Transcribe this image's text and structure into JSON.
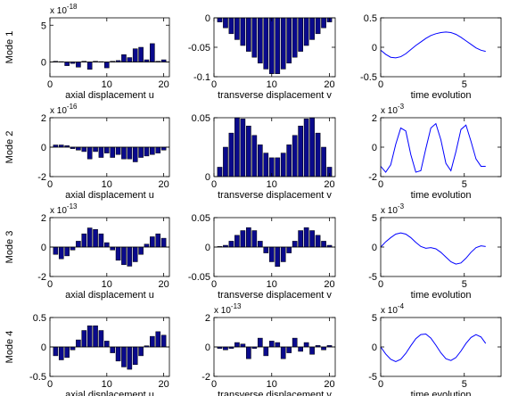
{
  "colors": {
    "bar_fill": "#0a0a8c",
    "bar_edge": "#000000",
    "line": "#0000ff",
    "axes": "#000000"
  },
  "chart_data": [
    {
      "type": "bar",
      "title": "",
      "row_label": "Mode 1",
      "xlabel": "axial displacement u",
      "ylabel": "",
      "xlim": [
        0,
        21
      ],
      "ylim": [
        -2,
        6
      ],
      "multiplier": "x 10",
      "exponent": "-18",
      "xticks": [
        0,
        10,
        20
      ],
      "xtick_labels": [
        "0",
        "10",
        "20"
      ],
      "yticks": [
        0,
        5
      ],
      "ytick_labels": [
        "0",
        "5"
      ],
      "x": [
        1,
        2,
        3,
        4,
        5,
        6,
        7,
        8,
        9,
        10,
        11,
        12,
        13,
        14,
        15,
        16,
        17,
        18,
        19,
        20
      ],
      "values": [
        0.1,
        0.05,
        -0.5,
        -0.2,
        -0.7,
        0.1,
        -1.0,
        0.1,
        0.05,
        -0.8,
        0.1,
        0.2,
        1.0,
        0.6,
        1.8,
        2.0,
        0.3,
        2.5,
        0.1,
        0.3
      ]
    },
    {
      "type": "bar",
      "title": "",
      "row_label": "",
      "xlabel": "transverse displacement v",
      "ylabel": "",
      "xlim": [
        0,
        21
      ],
      "ylim": [
        -0.1,
        0
      ],
      "multiplier": "",
      "exponent": "",
      "xticks": [
        0,
        10,
        20
      ],
      "xtick_labels": [
        "0",
        "10",
        "20"
      ],
      "yticks": [
        -0.1,
        -0.05,
        0
      ],
      "ytick_labels": [
        "-0.1",
        "-0.05",
        "0"
      ],
      "x": [
        1,
        2,
        3,
        4,
        5,
        6,
        7,
        8,
        9,
        10,
        11,
        12,
        13,
        14,
        15,
        16,
        17,
        18,
        19,
        20
      ],
      "values": [
        -0.007,
        -0.017,
        -0.027,
        -0.037,
        -0.047,
        -0.057,
        -0.067,
        -0.077,
        -0.087,
        -0.095,
        -0.095,
        -0.087,
        -0.077,
        -0.067,
        -0.057,
        -0.047,
        -0.037,
        -0.027,
        -0.017,
        -0.007
      ]
    },
    {
      "type": "line",
      "title": "",
      "row_label": "",
      "xlabel": "time evolution",
      "ylabel": "",
      "xlim": [
        0,
        7.2
      ],
      "ylim": [
        -0.5,
        0.5
      ],
      "multiplier": "",
      "exponent": "",
      "xticks": [
        0,
        5
      ],
      "xtick_labels": [
        "0",
        "5"
      ],
      "yticks": [
        -0.5,
        0,
        0.5
      ],
      "ytick_labels": [
        "-0.5",
        "0",
        "0.5"
      ],
      "x": [
        0,
        0.3,
        0.6,
        0.9,
        1.2,
        1.5,
        1.8,
        2.1,
        2.4,
        2.7,
        3.0,
        3.3,
        3.6,
        3.9,
        4.2,
        4.5,
        4.8,
        5.1,
        5.4,
        5.7,
        6.0,
        6.28
      ],
      "y": [
        -0.05,
        -0.12,
        -0.17,
        -0.18,
        -0.16,
        -0.11,
        -0.04,
        0.03,
        0.09,
        0.15,
        0.2,
        0.23,
        0.25,
        0.26,
        0.25,
        0.22,
        0.17,
        0.11,
        0.05,
        -0.01,
        -0.05,
        -0.07
      ]
    },
    {
      "type": "bar",
      "title": "",
      "row_label": "Mode 2",
      "xlabel": "axial displacement u",
      "ylabel": "",
      "xlim": [
        0,
        21
      ],
      "ylim": [
        -2,
        2
      ],
      "multiplier": "x 10",
      "exponent": "-16",
      "xticks": [
        0,
        10,
        20
      ],
      "xtick_labels": [
        "0",
        "10",
        "20"
      ],
      "yticks": [
        -2,
        0,
        2
      ],
      "ytick_labels": [
        "-2",
        "0",
        "2"
      ],
      "x": [
        1,
        2,
        3,
        4,
        5,
        6,
        7,
        8,
        9,
        10,
        11,
        12,
        13,
        14,
        15,
        16,
        17,
        18,
        19,
        20
      ],
      "values": [
        0.15,
        0.15,
        0.1,
        -0.1,
        -0.2,
        -0.3,
        -0.8,
        -0.3,
        -0.7,
        -0.4,
        -0.7,
        -0.5,
        -0.8,
        -0.8,
        -1.0,
        -0.7,
        -0.6,
        -0.5,
        -0.4,
        -0.2
      ]
    },
    {
      "type": "bar",
      "title": "",
      "row_label": "",
      "xlabel": "transverse displacement v",
      "ylabel": "",
      "xlim": [
        0,
        21
      ],
      "ylim": [
        0,
        0.05
      ],
      "multiplier": "",
      "exponent": "",
      "xticks": [
        0,
        10,
        20
      ],
      "xtick_labels": [
        "0",
        "10",
        "20"
      ],
      "yticks": [
        0,
        0.05
      ],
      "ytick_labels": [
        "0",
        "0.05"
      ],
      "x": [
        1,
        2,
        3,
        4,
        5,
        6,
        7,
        8,
        9,
        10,
        11,
        12,
        13,
        14,
        15,
        16,
        17,
        18,
        19,
        20
      ],
      "values": [
        0.008,
        0.025,
        0.037,
        0.05,
        0.049,
        0.043,
        0.035,
        0.027,
        0.02,
        0.016,
        0.016,
        0.02,
        0.027,
        0.035,
        0.043,
        0.049,
        0.05,
        0.037,
        0.025,
        0.008
      ]
    },
    {
      "type": "line",
      "title": "",
      "row_label": "",
      "xlabel": "time evolution",
      "ylabel": "",
      "xlim": [
        0,
        7.2
      ],
      "ylim": [
        -2,
        2
      ],
      "multiplier": "x 10",
      "exponent": "-3",
      "xticks": [
        0,
        5
      ],
      "xtick_labels": [
        "0",
        "5"
      ],
      "yticks": [
        -2,
        0,
        2
      ],
      "ytick_labels": [
        "-2",
        "0",
        "2"
      ],
      "x": [
        0,
        0.3,
        0.6,
        0.9,
        1.2,
        1.5,
        1.8,
        2.1,
        2.4,
        2.7,
        3.0,
        3.3,
        3.6,
        3.9,
        4.2,
        4.5,
        4.8,
        5.1,
        5.4,
        5.7,
        6.0,
        6.28
      ],
      "y": [
        -1.3,
        -1.7,
        -1.2,
        0.2,
        1.3,
        1.1,
        -0.5,
        -1.7,
        -1.6,
        -0.1,
        1.3,
        1.6,
        0.5,
        -1.1,
        -1.6,
        -0.3,
        1.2,
        1.5,
        0.4,
        -0.8,
        -1.3,
        -1.3
      ]
    },
    {
      "type": "bar",
      "title": "",
      "row_label": "Mode 3",
      "xlabel": "axial displacement u",
      "ylabel": "",
      "xlim": [
        0,
        21
      ],
      "ylim": [
        -2,
        2
      ],
      "multiplier": "x 10",
      "exponent": "-13",
      "xticks": [
        0,
        10,
        20
      ],
      "xtick_labels": [
        "0",
        "10",
        "20"
      ],
      "yticks": [
        -2,
        0,
        2
      ],
      "ytick_labels": [
        "-2",
        "0",
        "2"
      ],
      "x": [
        1,
        2,
        3,
        4,
        5,
        6,
        7,
        8,
        9,
        10,
        11,
        12,
        13,
        14,
        15,
        16,
        17,
        18,
        19,
        20
      ],
      "values": [
        -0.5,
        -0.8,
        -0.6,
        -0.2,
        0.4,
        0.9,
        1.3,
        1.2,
        0.9,
        0.3,
        -0.2,
        -0.9,
        -1.2,
        -1.3,
        -1.0,
        -0.5,
        0.2,
        0.7,
        0.9,
        0.6
      ]
    },
    {
      "type": "bar",
      "title": "",
      "row_label": "",
      "xlabel": "transverse displacement v",
      "ylabel": "",
      "xlim": [
        0,
        21
      ],
      "ylim": [
        -0.05,
        0.05
      ],
      "multiplier": "",
      "exponent": "",
      "xticks": [
        0,
        10,
        20
      ],
      "xtick_labels": [
        "0",
        "10",
        "20"
      ],
      "yticks": [
        -0.05,
        0,
        0.05
      ],
      "ytick_labels": [
        "-0.05",
        "0",
        "0.05"
      ],
      "x": [
        1,
        2,
        3,
        4,
        5,
        6,
        7,
        8,
        9,
        10,
        11,
        12,
        13,
        14,
        15,
        16,
        17,
        18,
        19,
        20
      ],
      "values": [
        0.001,
        0.003,
        0.01,
        0.02,
        0.028,
        0.033,
        0.028,
        0.01,
        -0.01,
        -0.025,
        -0.033,
        -0.025,
        -0.01,
        0.01,
        0.028,
        0.033,
        0.028,
        0.02,
        0.01,
        0.003
      ]
    },
    {
      "type": "line",
      "title": "",
      "row_label": "",
      "xlabel": "time evolution",
      "ylabel": "",
      "xlim": [
        0,
        7.2
      ],
      "ylim": [
        -5,
        5
      ],
      "multiplier": "x 10",
      "exponent": "-3",
      "xticks": [
        0,
        5
      ],
      "xtick_labels": [
        "0",
        "5"
      ],
      "yticks": [
        -5,
        0,
        5
      ],
      "ytick_labels": [
        "-5",
        "0",
        "5"
      ],
      "x": [
        0,
        0.3,
        0.6,
        0.9,
        1.2,
        1.5,
        1.8,
        2.1,
        2.4,
        2.7,
        3.0,
        3.3,
        3.6,
        3.9,
        4.2,
        4.5,
        4.8,
        5.1,
        5.4,
        5.7,
        6.0,
        6.28
      ],
      "y": [
        0,
        0.9,
        1.6,
        2.2,
        2.4,
        2.2,
        1.6,
        0.8,
        0.1,
        -0.2,
        -0.1,
        -0.3,
        -0.9,
        -1.7,
        -2.5,
        -2.9,
        -2.7,
        -1.9,
        -0.9,
        -0.1,
        0.2,
        0.1
      ]
    },
    {
      "type": "bar",
      "title": "",
      "row_label": "Mode 4",
      "xlabel": "axial displacement u",
      "ylabel": "",
      "xlim": [
        0,
        21
      ],
      "ylim": [
        -0.5,
        0.5
      ],
      "multiplier": "",
      "exponent": "",
      "xticks": [
        0,
        10,
        20
      ],
      "xtick_labels": [
        "0",
        "10",
        "20"
      ],
      "yticks": [
        -0.5,
        0,
        0.5
      ],
      "ytick_labels": [
        "-0.5",
        "0",
        "0.5"
      ],
      "x": [
        1,
        2,
        3,
        4,
        5,
        6,
        7,
        8,
        9,
        10,
        11,
        12,
        13,
        14,
        15,
        16,
        17,
        18,
        19,
        20
      ],
      "values": [
        -0.15,
        -0.22,
        -0.18,
        -0.05,
        0.12,
        0.28,
        0.36,
        0.36,
        0.28,
        0.1,
        -0.1,
        -0.24,
        -0.34,
        -0.38,
        -0.3,
        -0.15,
        0.02,
        0.18,
        0.26,
        0.2
      ]
    },
    {
      "type": "bar",
      "title": "",
      "row_label": "",
      "xlabel": "transverse displacement v",
      "ylabel": "",
      "xlim": [
        0,
        21
      ],
      "ylim": [
        -2,
        2
      ],
      "multiplier": "x 10",
      "exponent": "-13",
      "xticks": [
        0,
        10,
        20
      ],
      "xtick_labels": [
        "0",
        "10",
        "20"
      ],
      "yticks": [
        -2,
        0,
        2
      ],
      "ytick_labels": [
        "-2",
        "0",
        "2"
      ],
      "x": [
        1,
        2,
        3,
        4,
        5,
        6,
        7,
        8,
        9,
        10,
        11,
        12,
        13,
        14,
        15,
        16,
        17,
        18,
        19,
        20
      ],
      "values": [
        -0.1,
        -0.2,
        -0.1,
        0.3,
        0.2,
        -0.8,
        -0.1,
        0.6,
        -0.6,
        0.4,
        0.3,
        -0.8,
        -0.4,
        0.6,
        -0.3,
        0.3,
        -0.5,
        0.1,
        -0.2,
        0.1
      ]
    },
    {
      "type": "line",
      "title": "",
      "row_label": "",
      "xlabel": "time evolution",
      "ylabel": "",
      "xlim": [
        0,
        7.2
      ],
      "ylim": [
        -5,
        5
      ],
      "multiplier": "x 10",
      "exponent": "-4",
      "xticks": [
        0,
        5
      ],
      "xtick_labels": [
        "0",
        "5"
      ],
      "yticks": [
        -5,
        0,
        5
      ],
      "ytick_labels": [
        "-5",
        "0",
        "5"
      ],
      "x": [
        0,
        0.3,
        0.6,
        0.9,
        1.2,
        1.5,
        1.8,
        2.1,
        2.4,
        2.7,
        3.0,
        3.3,
        3.6,
        3.9,
        4.2,
        4.5,
        4.8,
        5.1,
        5.4,
        5.7,
        6.0,
        6.28
      ],
      "y": [
        0,
        -1.2,
        -2.1,
        -2.5,
        -2.1,
        -1.1,
        0.2,
        1.4,
        2.1,
        2.2,
        1.5,
        0.3,
        -1.0,
        -2.0,
        -2.3,
        -1.8,
        -0.7,
        0.6,
        1.6,
        2.1,
        1.7,
        0.6
      ]
    }
  ]
}
